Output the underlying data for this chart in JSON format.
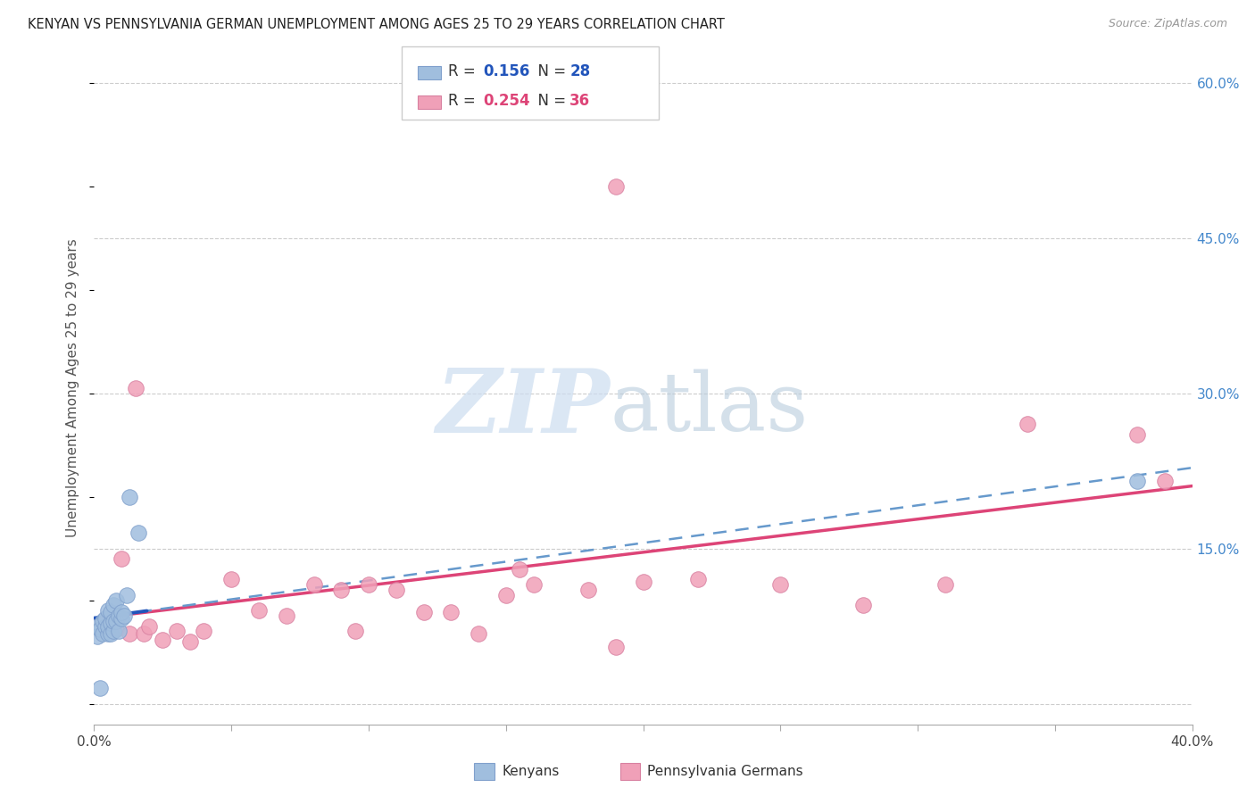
{
  "title": "KENYAN VS PENNSYLVANIA GERMAN UNEMPLOYMENT AMONG AGES 25 TO 29 YEARS CORRELATION CHART",
  "source": "Source: ZipAtlas.com",
  "ylabel_left": "Unemployment Among Ages 25 to 29 years",
  "xlim": [
    0.0,
    0.4
  ],
  "ylim": [
    -0.02,
    0.63
  ],
  "x_tick_positions": [
    0.0,
    0.05,
    0.1,
    0.15,
    0.2,
    0.25,
    0.3,
    0.35,
    0.4
  ],
  "x_tick_labels": [
    "0.0%",
    "",
    "",
    "",
    "",
    "",
    "",
    "",
    "40.0%"
  ],
  "y_tick_positions": [
    0.0,
    0.15,
    0.3,
    0.45,
    0.6
  ],
  "y_tick_labels": [
    "",
    "15.0%",
    "30.0%",
    "45.0%",
    "60.0%"
  ],
  "kenyan_color": "#a0bede",
  "kenyan_edge": "#80a0cc",
  "pa_color": "#f0a0b8",
  "pa_edge": "#d880a0",
  "trend_blue_solid": "#2255bb",
  "trend_pink_solid": "#dd4477",
  "trend_blue_dash": "#6699cc",
  "grid_color": "#cccccc",
  "watermark_zip_color": "#ccddf0",
  "watermark_atlas_color": "#b8ccdd",
  "legend_box_edge": "#cccccc",
  "kenyan_x": [
    0.001,
    0.001,
    0.002,
    0.002,
    0.003,
    0.003,
    0.004,
    0.004,
    0.005,
    0.005,
    0.005,
    0.006,
    0.006,
    0.006,
    0.007,
    0.007,
    0.007,
    0.008,
    0.008,
    0.009,
    0.009,
    0.01,
    0.01,
    0.011,
    0.012,
    0.013,
    0.016,
    0.38
  ],
  "kenyan_y": [
    0.075,
    0.065,
    0.015,
    0.072,
    0.068,
    0.08,
    0.075,
    0.082,
    0.068,
    0.075,
    0.09,
    0.068,
    0.078,
    0.088,
    0.07,
    0.08,
    0.095,
    0.08,
    0.1,
    0.07,
    0.085,
    0.082,
    0.088,
    0.085,
    0.105,
    0.2,
    0.165,
    0.215
  ],
  "pa_x": [
    0.005,
    0.008,
    0.01,
    0.013,
    0.015,
    0.018,
    0.02,
    0.025,
    0.03,
    0.035,
    0.04,
    0.05,
    0.06,
    0.07,
    0.08,
    0.09,
    0.095,
    0.1,
    0.11,
    0.12,
    0.13,
    0.14,
    0.15,
    0.155,
    0.16,
    0.18,
    0.19,
    0.2,
    0.22,
    0.25,
    0.28,
    0.31,
    0.34,
    0.38,
    0.39,
    0.19
  ],
  "pa_y": [
    0.082,
    0.072,
    0.14,
    0.068,
    0.305,
    0.068,
    0.075,
    0.062,
    0.07,
    0.06,
    0.07,
    0.12,
    0.09,
    0.085,
    0.115,
    0.11,
    0.07,
    0.115,
    0.11,
    0.088,
    0.088,
    0.068,
    0.105,
    0.13,
    0.115,
    0.11,
    0.055,
    0.118,
    0.12,
    0.115,
    0.095,
    0.115,
    0.27,
    0.26,
    0.215,
    0.5
  ]
}
